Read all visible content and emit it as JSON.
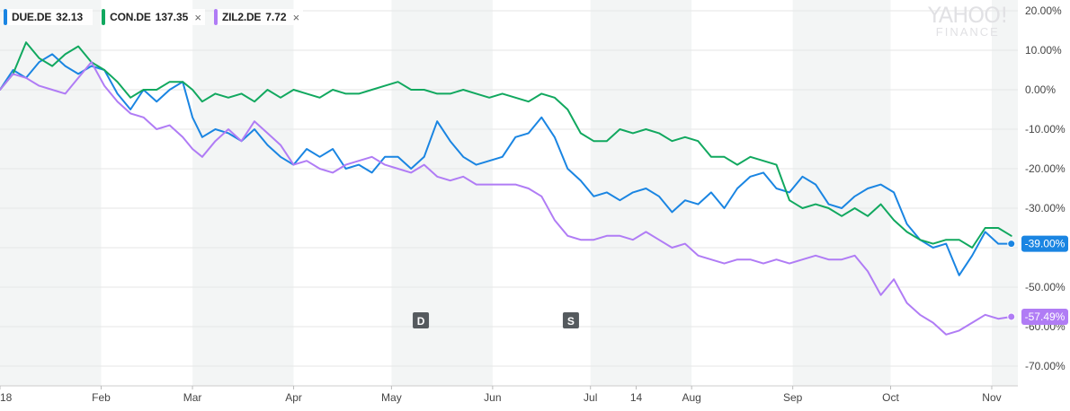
{
  "legend": [
    {
      "symbol": "DUE.DE",
      "value": "32.13",
      "color": "#1a85e2",
      "closable": false
    },
    {
      "symbol": "CON.DE",
      "value": "137.35",
      "color": "#11a85f",
      "closable": true
    },
    {
      "symbol": "ZIL2.DE",
      "value": "7.72",
      "color": "#b07cf5",
      "closable": true
    }
  ],
  "close_icon": "×",
  "watermark": {
    "line1": "YAHOO!",
    "line2": "FINANCE"
  },
  "colors": {
    "band": "#f3f5f5",
    "grid": "#e6e6e6",
    "axis_text": "#444444",
    "marker_bg": "#555a5e"
  },
  "chart_data": {
    "type": "line",
    "title": "",
    "xlabel": "",
    "ylabel": "",
    "ylim": [
      -75,
      22
    ],
    "y_ticks": [
      20,
      10,
      0,
      -10,
      -20,
      -30,
      -40,
      -50,
      -60,
      -70
    ],
    "y_tick_labels": [
      "20.00%",
      "10.00%",
      "0.00%",
      "-10.00%",
      "-20.00%",
      "-30.00%",
      "-40.00%",
      "-50.00%",
      "-60.00%",
      "-70.00%"
    ],
    "x_range": [
      0,
      312
    ],
    "x_ticks": [
      {
        "x": 0,
        "label": "18"
      },
      {
        "x": 31,
        "label": "Feb"
      },
      {
        "x": 59,
        "label": "Mar"
      },
      {
        "x": 90,
        "label": "Apr"
      },
      {
        "x": 120,
        "label": "May"
      },
      {
        "x": 151,
        "label": "Jun"
      },
      {
        "x": 181,
        "label": "Jul"
      },
      {
        "x": 195,
        "label": "14"
      },
      {
        "x": 212,
        "label": "Aug"
      },
      {
        "x": 243,
        "label": "Sep"
      },
      {
        "x": 273,
        "label": "Oct"
      },
      {
        "x": 304,
        "label": "Nov"
      }
    ],
    "shaded_months": [
      [
        0,
        31
      ],
      [
        59,
        90
      ],
      [
        120,
        151
      ],
      [
        181,
        212
      ],
      [
        243,
        273
      ],
      [
        304,
        312
      ]
    ],
    "events": [
      {
        "label": "D",
        "x": 129
      },
      {
        "label": "S",
        "x": 175
      }
    ],
    "series": [
      {
        "name": "DUE.DE",
        "color": "#1a85e2",
        "last_label": "-39.00%",
        "x": [
          0,
          4,
          8,
          12,
          16,
          20,
          24,
          28,
          32,
          36,
          40,
          44,
          48,
          52,
          56,
          59,
          62,
          66,
          70,
          74,
          78,
          82,
          86,
          90,
          94,
          98,
          102,
          106,
          110,
          114,
          118,
          122,
          126,
          130,
          134,
          138,
          142,
          146,
          150,
          154,
          158,
          162,
          166,
          170,
          174,
          178,
          182,
          186,
          190,
          194,
          198,
          202,
          206,
          210,
          214,
          218,
          222,
          226,
          230,
          234,
          238,
          242,
          246,
          250,
          254,
          258,
          262,
          266,
          270,
          274,
          278,
          282,
          286,
          290,
          294,
          298,
          302,
          306,
          310
        ],
        "values": [
          0,
          5,
          3,
          7,
          9,
          6,
          4,
          6,
          5,
          -1,
          -5,
          0,
          -3,
          0,
          2,
          -7,
          -12,
          -10,
          -11,
          -13,
          -10,
          -14,
          -17,
          -19,
          -15,
          -17,
          -15,
          -20,
          -19,
          -21,
          -17,
          -17,
          -20,
          -17,
          -8,
          -13,
          -17,
          -19,
          -18,
          -17,
          -12,
          -11,
          -7,
          -12,
          -20,
          -23,
          -27,
          -26,
          -28,
          -26,
          -25,
          -27,
          -31,
          -28,
          -29,
          -26,
          -30,
          -25,
          -22,
          -21,
          -25,
          -26,
          -22,
          -24,
          -29,
          -30,
          -27,
          -25,
          -24,
          -26,
          -34,
          -38,
          -40,
          -39,
          -47,
          -42,
          -36,
          -39,
          -39
        ]
      },
      {
        "name": "CON.DE",
        "color": "#11a85f",
        "last_label": "",
        "x": [
          0,
          4,
          8,
          12,
          16,
          20,
          24,
          28,
          32,
          36,
          40,
          44,
          48,
          52,
          56,
          59,
          62,
          66,
          70,
          74,
          78,
          82,
          86,
          90,
          94,
          98,
          102,
          106,
          110,
          114,
          118,
          122,
          126,
          130,
          134,
          138,
          142,
          146,
          150,
          154,
          158,
          162,
          166,
          170,
          174,
          178,
          182,
          186,
          190,
          194,
          198,
          202,
          206,
          210,
          214,
          218,
          222,
          226,
          230,
          234,
          238,
          242,
          246,
          250,
          254,
          258,
          262,
          266,
          270,
          274,
          278,
          282,
          286,
          290,
          294,
          298,
          302,
          306,
          310
        ],
        "values": [
          0,
          4,
          12,
          8,
          6,
          9,
          11,
          7,
          5,
          2,
          -2,
          0,
          0,
          2,
          2,
          0,
          -3,
          -1,
          -2,
          -1,
          -3,
          0,
          -2,
          0,
          -1,
          -2,
          0,
          -1,
          -1,
          0,
          1,
          2,
          0,
          0,
          -1,
          -1,
          0,
          -1,
          -2,
          -1,
          -2,
          -3,
          -1,
          -2,
          -5,
          -11,
          -13,
          -13,
          -10,
          -11,
          -10,
          -11,
          -13,
          -12,
          -13,
          -17,
          -17,
          -19,
          -17,
          -18,
          -19,
          -28,
          -30,
          -29,
          -30,
          -32,
          -30,
          -32,
          -29,
          -33,
          -36,
          -38,
          -39,
          -38,
          -38,
          -40,
          -35,
          -35,
          -37
        ]
      },
      {
        "name": "ZIL2.DE",
        "color": "#b07cf5",
        "last_label": "-57.49%",
        "x": [
          0,
          4,
          8,
          12,
          16,
          20,
          24,
          28,
          32,
          36,
          40,
          44,
          48,
          52,
          56,
          59,
          62,
          66,
          70,
          74,
          78,
          82,
          86,
          90,
          94,
          98,
          102,
          106,
          110,
          114,
          118,
          122,
          126,
          130,
          134,
          138,
          142,
          146,
          150,
          154,
          158,
          162,
          166,
          170,
          174,
          178,
          182,
          186,
          190,
          194,
          198,
          202,
          206,
          210,
          214,
          218,
          222,
          226,
          230,
          234,
          238,
          242,
          246,
          250,
          254,
          258,
          262,
          266,
          270,
          274,
          278,
          282,
          286,
          290,
          294,
          298,
          302,
          306,
          310
        ],
        "values": [
          0,
          4,
          3,
          1,
          0,
          -1,
          3,
          7,
          1,
          -3,
          -6,
          -7,
          -10,
          -9,
          -12,
          -15,
          -17,
          -13,
          -10,
          -13,
          -8,
          -11,
          -14,
          -19,
          -18,
          -20,
          -21,
          -19,
          -18,
          -17,
          -19,
          -20,
          -21,
          -19,
          -22,
          -23,
          -22,
          -24,
          -24,
          -24,
          -24,
          -25,
          -27,
          -33,
          -37,
          -38,
          -38,
          -37,
          -37,
          -38,
          -36,
          -38,
          -40,
          -39,
          -42,
          -43,
          -44,
          -43,
          -43,
          -44,
          -43,
          -44,
          -43,
          -42,
          -43,
          -43,
          -42,
          -46,
          -52,
          -48,
          -54,
          -57,
          -59,
          -62,
          -61,
          -59,
          -57,
          -58,
          -57.49
        ]
      }
    ]
  }
}
